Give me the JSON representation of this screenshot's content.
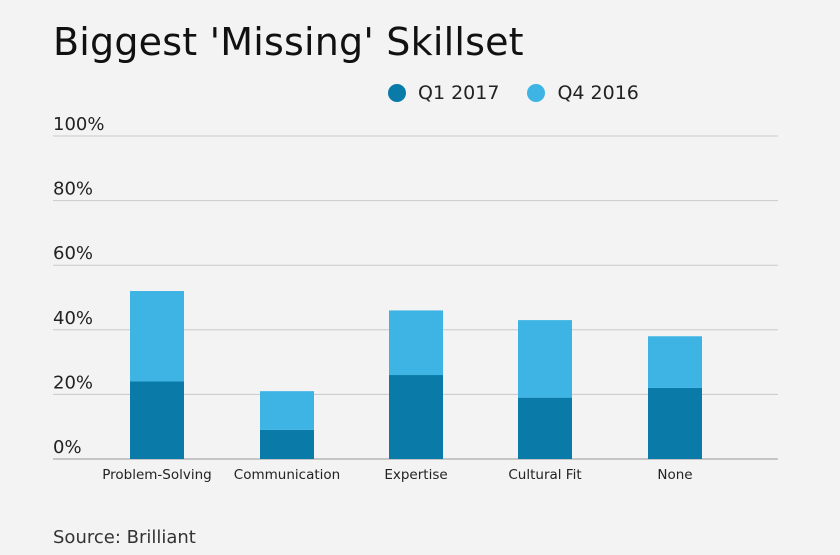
{
  "title": "Biggest 'Missing' Skillset",
  "source": "Source: Brilliant",
  "colors": {
    "q1_2017": "#0a7ba8",
    "q4_2016": "#3eb4e5",
    "grid": "#c9c9c9",
    "axis": "#9a9a9a",
    "background": "#f2f3f2"
  },
  "chart_data": {
    "type": "bar",
    "stacked": true,
    "title": "Biggest 'Missing' Skillset",
    "categories": [
      "Problem-Solving",
      "Communication",
      "Expertise",
      "Cultural Fit",
      "None"
    ],
    "series": [
      {
        "name": "Q1 2017",
        "color": "#0a7ba8",
        "values": [
          24,
          9,
          26,
          19,
          22
        ]
      },
      {
        "name": "Q4 2016",
        "color": "#3eb4e5",
        "values": [
          28,
          12,
          20,
          24,
          16
        ]
      }
    ],
    "ylim": [
      0,
      100
    ],
    "yticks": [
      0,
      20,
      40,
      60,
      80,
      100
    ],
    "ytick_labels": [
      "0%",
      "20%",
      "40%",
      "60%",
      "80%",
      "100%"
    ],
    "xlabel": "",
    "ylabel": "",
    "grid": true,
    "legend_position": "top-right"
  }
}
